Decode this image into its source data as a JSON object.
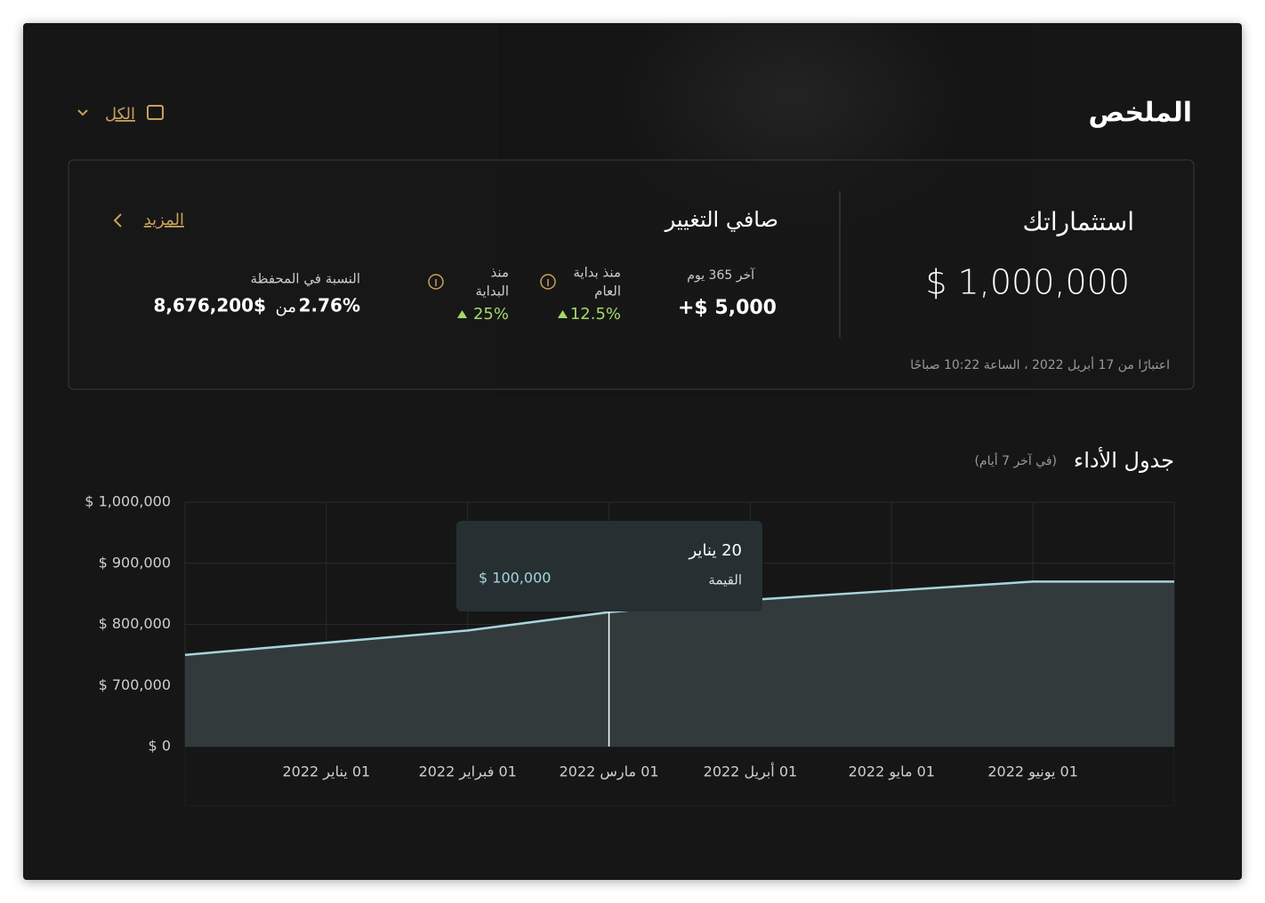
{
  "header": {
    "title": "الملخص",
    "filter": "الكل"
  },
  "summary": {
    "investments": {
      "title": "استثماراتك",
      "value": "$ 1,000,000",
      "as_of": "اعتبارًا من 17 أبريل 2022 ، الساعة 10:22 صباحًا"
    },
    "net_change": {
      "title": "صافي التغيير",
      "more": "المزيد",
      "last_365": {
        "label": "آخر 365 يوم",
        "value": "+$ 5,000"
      },
      "ytd": {
        "label_lines": [
          "منذ بداية",
          "العام"
        ],
        "value": "12.5%"
      },
      "since_start": {
        "label_lines": [
          "منذ",
          "البداية"
        ],
        "value": "25%"
      },
      "portfolio": {
        "label": "النسبة في المحفظة",
        "share": "2.76%",
        "of": "من",
        "total": "8,676,200$"
      }
    }
  },
  "chart_data": {
    "type": "line",
    "title": "جدول الأداء",
    "subtitle": "(في آخر 7 أيام)",
    "categories": [
      null,
      "01 يناير 2022",
      "01 فبراير 2022",
      "01 مارس 2022",
      "01 أبريل 2022",
      "01 مايو 2022",
      "01 يونيو 2022",
      null
    ],
    "values": [
      750000,
      770000,
      790000,
      820000,
      840000,
      855000,
      870000,
      870000
    ],
    "color": "#a8d4dc",
    "ylim": [
      0,
      1000000
    ],
    "yticks": [
      {
        "value": 0,
        "label": "$ 0"
      },
      {
        "value": 700000,
        "label": "$ 700,000"
      },
      {
        "value": 800000,
        "label": "$ 800,000"
      },
      {
        "value": 900000,
        "label": "$ 900,000"
      },
      {
        "value": 1000000,
        "label": "$ 1,000,000"
      }
    ],
    "grid": true,
    "tooltip": {
      "date": "20 يناير",
      "label": "القيمة",
      "value": "$ 100,000"
    }
  }
}
